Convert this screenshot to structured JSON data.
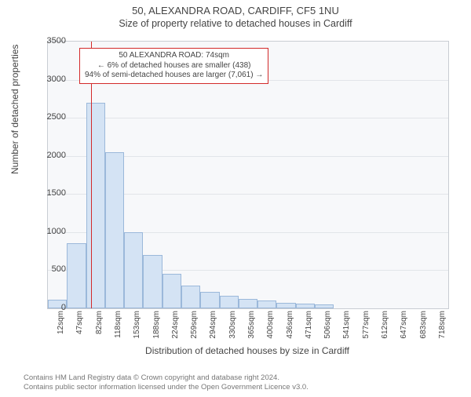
{
  "title_line1": "50, ALEXANDRA ROAD, CARDIFF, CF5 1NU",
  "title_line2": "Size of property relative to detached houses in Cardiff",
  "chart": {
    "type": "histogram",
    "ylabel": "Number of detached properties",
    "xlabel": "Distribution of detached houses by size in Cardiff",
    "ylim": [
      0,
      3500
    ],
    "ytick_step": 500,
    "yticks": [
      0,
      500,
      1000,
      1500,
      2000,
      2500,
      3000,
      3500
    ],
    "x_categories": [
      "12sqm",
      "47sqm",
      "82sqm",
      "118sqm",
      "153sqm",
      "188sqm",
      "224sqm",
      "259sqm",
      "294sqm",
      "330sqm",
      "365sqm",
      "400sqm",
      "436sqm",
      "471sqm",
      "506sqm",
      "541sqm",
      "577sqm",
      "612sqm",
      "647sqm",
      "683sqm",
      "718sqm"
    ],
    "values": [
      110,
      850,
      2700,
      2050,
      1000,
      700,
      450,
      300,
      220,
      160,
      120,
      100,
      75,
      60,
      50,
      0,
      0,
      0,
      0,
      0,
      0
    ],
    "bar_color": "#d4e3f4",
    "bar_border_color": "#9bb8da",
    "background_color": "#f7f8fa",
    "grid_color": "#e2e5e9",
    "axis_color": "#c9cdd3",
    "marker": {
      "color": "#d32a2a",
      "position_index": 1.75
    },
    "annotation": {
      "border_color": "#d32a2a",
      "lines": [
        "50 ALEXANDRA ROAD: 74sqm",
        "← 6% of detached houses are smaller (438)",
        "94% of semi-detached houses are larger (7,061) →"
      ]
    },
    "label_fontsize": 12,
    "tick_fontsize": 11
  },
  "footer_lines": [
    "Contains HM Land Registry data © Crown copyright and database right 2024.",
    "Contains public sector information licensed under the Open Government Licence v3.0."
  ]
}
